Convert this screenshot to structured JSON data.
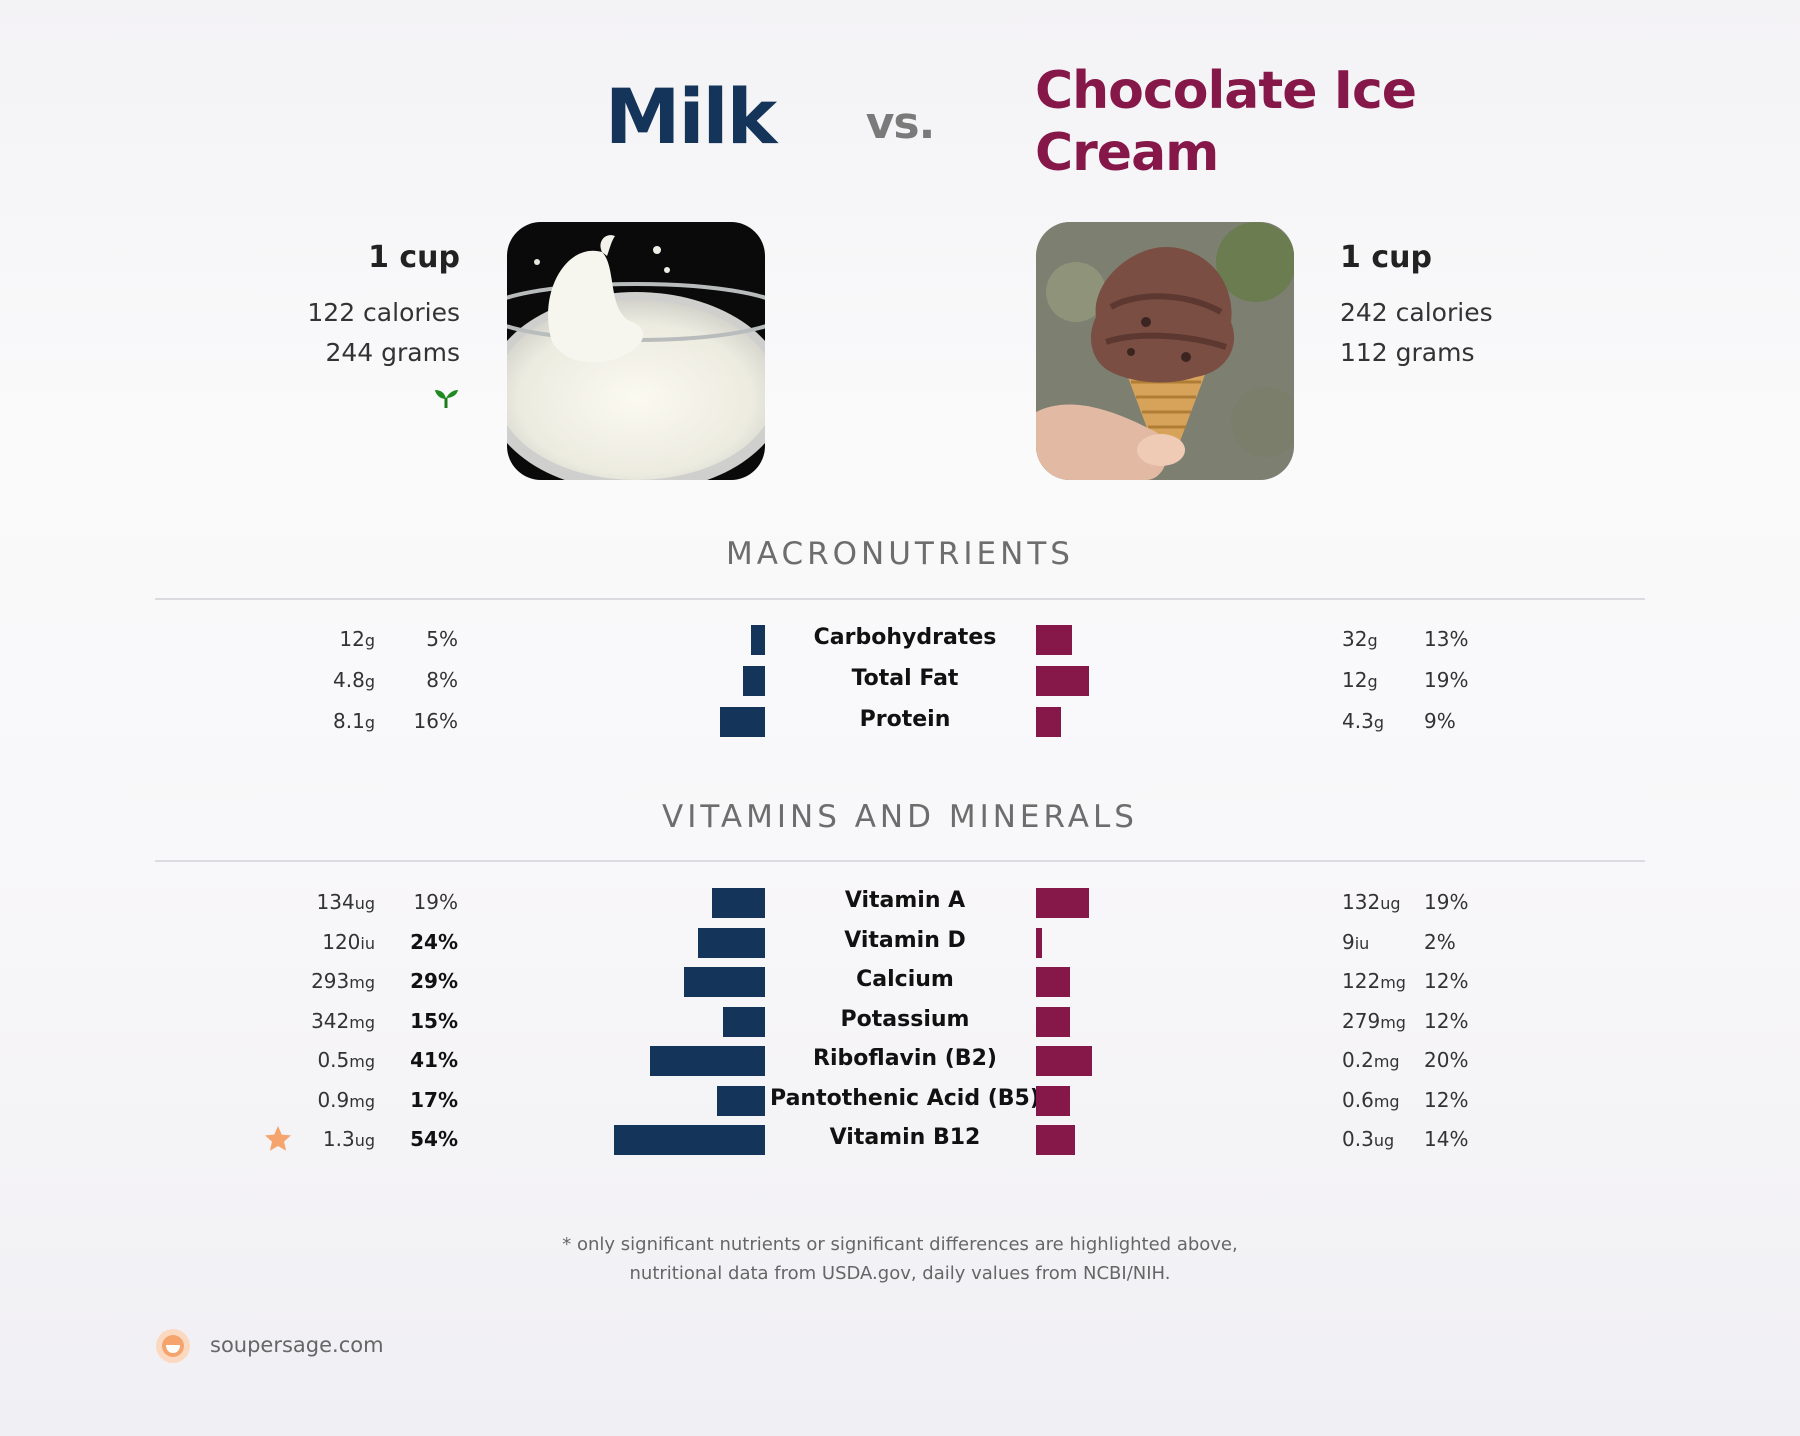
{
  "header": {
    "left_title": "Milk",
    "vs": "vs.",
    "right_title_line1": "Chocolate Ice",
    "right_title_line2": "Cream"
  },
  "left_food": {
    "serving": "1 cup",
    "calories": "122 calories",
    "grams": "244 grams",
    "icon": "sprout-icon",
    "color": "#14345a"
  },
  "right_food": {
    "serving": "1 cup",
    "calories": "242 calories",
    "grams": "112 grams",
    "color": "#861849"
  },
  "sections": {
    "macros": "MACRONUTRIENTS",
    "vitamins": "VITAMINS AND MINERALS"
  },
  "chart_data": [
    {
      "type": "bar",
      "title": "MACRONUTRIENTS",
      "categories": [
        "Carbohydrates",
        "Total Fat",
        "Protein"
      ],
      "series": [
        {
          "name": "Milk",
          "amounts": [
            "12",
            "4.8",
            "8.1"
          ],
          "units": [
            "g",
            "g",
            "g"
          ],
          "values": [
            5,
            8,
            16
          ],
          "labels": [
            "5%",
            "8%",
            "16%"
          ],
          "highlight": [
            false,
            false,
            false
          ]
        },
        {
          "name": "Chocolate Ice Cream",
          "amounts": [
            "32",
            "12",
            "4.3"
          ],
          "units": [
            "g",
            "g",
            "g"
          ],
          "values": [
            13,
            19,
            9
          ],
          "labels": [
            "13%",
            "19%",
            "9%"
          ],
          "highlight": [
            false,
            false,
            false
          ]
        }
      ]
    },
    {
      "type": "bar",
      "title": "VITAMINS AND MINERALS",
      "categories": [
        "Vitamin A",
        "Vitamin D",
        "Calcium",
        "Potassium",
        "Riboflavin (B2)",
        "Pantothenic Acid (B5)",
        "Vitamin B12"
      ],
      "series": [
        {
          "name": "Milk",
          "amounts": [
            "134",
            "120",
            "293",
            "342",
            "0.5",
            "0.9",
            "1.3"
          ],
          "units": [
            "ug",
            "iu",
            "mg",
            "mg",
            "mg",
            "mg",
            "ug"
          ],
          "values": [
            19,
            24,
            29,
            15,
            41,
            17,
            54
          ],
          "labels": [
            "19%",
            "24%",
            "29%",
            "15%",
            "41%",
            "17%",
            "54%"
          ],
          "highlight": [
            false,
            true,
            true,
            true,
            true,
            true,
            true
          ],
          "star_row": 6
        },
        {
          "name": "Chocolate Ice Cream",
          "amounts": [
            "132",
            "9",
            "122",
            "279",
            "0.2",
            "0.6",
            "0.3"
          ],
          "units": [
            "ug",
            "iu",
            "mg",
            "mg",
            "mg",
            "mg",
            "ug"
          ],
          "values": [
            19,
            2,
            12,
            12,
            20,
            12,
            14
          ],
          "labels": [
            "19%",
            "2%",
            "12%",
            "12%",
            "20%",
            "12%",
            "14%"
          ],
          "highlight": [
            false,
            false,
            false,
            false,
            false,
            false,
            false
          ]
        }
      ]
    }
  ],
  "footer": {
    "note_line1": "* only significant nutrients or significant differences are highlighted above,",
    "note_line2": "nutritional data from USDA.gov, daily values from NCBI/NIH.",
    "brand": "soupersage.com",
    "brand_icon": "soupersage-logo-icon",
    "star_icon": "star-icon"
  }
}
